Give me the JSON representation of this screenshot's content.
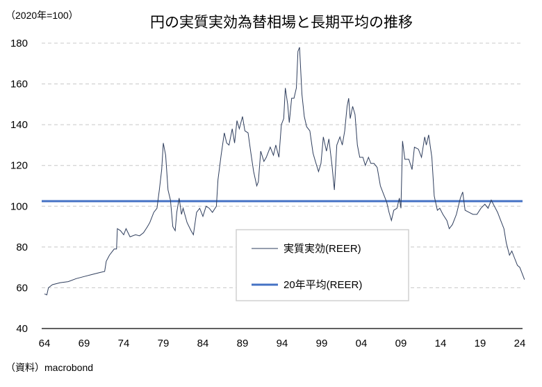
{
  "chart_data": {
    "type": "line",
    "title": "円の実質実効為替相場と長期平均の推移",
    "unit_label": "（2020年=100）",
    "source": "（資料）macrobond",
    "xlabel": "",
    "ylabel": "",
    "ylim": [
      40,
      180
    ],
    "yticks": [
      40,
      60,
      80,
      100,
      120,
      140,
      160,
      180
    ],
    "xlim": [
      1964,
      2024.6
    ],
    "xticks": [
      {
        "value": 1964,
        "label": "64"
      },
      {
        "value": 1969,
        "label": "69"
      },
      {
        "value": 1974,
        "label": "74"
      },
      {
        "value": 1979,
        "label": "79"
      },
      {
        "value": 1984,
        "label": "84"
      },
      {
        "value": 1989,
        "label": "89"
      },
      {
        "value": 1994,
        "label": "94"
      },
      {
        "value": 1999,
        "label": "99"
      },
      {
        "value": 2004,
        "label": "04"
      },
      {
        "value": 2009,
        "label": "09"
      },
      {
        "value": 2014,
        "label": "14"
      },
      {
        "value": 2019,
        "label": "19"
      },
      {
        "value": 2024,
        "label": "24"
      }
    ],
    "grid": true,
    "legend_position": "bottom-center",
    "series": [
      {
        "name": "実質実効(REER)",
        "color": "#2E3D5C",
        "x": [
          1964.0,
          1964.3,
          1964.5,
          1965,
          1966,
          1967,
          1968,
          1969,
          1970,
          1971,
          1971.6,
          1971.8,
          1972.2,
          1972.8,
          1973.1,
          1973.2,
          1973.6,
          1974,
          1974.3,
          1974.8,
          1975.5,
          1976,
          1976.5,
          1977,
          1977.3,
          1977.8,
          1978.2,
          1978.5,
          1978.8,
          1979.0,
          1979.3,
          1979.6,
          1979.9,
          1980.2,
          1980.5,
          1980.7,
          1981,
          1981.3,
          1981.5,
          1982,
          1982.5,
          1982.8,
          1983.2,
          1983.6,
          1984,
          1984.4,
          1984.8,
          1985.2,
          1985.7,
          1985.9,
          1986.3,
          1986.7,
          1987,
          1987.3,
          1987.7,
          1988,
          1988.3,
          1988.6,
          1989,
          1989.3,
          1989.7,
          1990.1,
          1990.4,
          1990.8,
          1991,
          1991.3,
          1991.7,
          1992,
          1992.5,
          1992.9,
          1993.2,
          1993.6,
          1993.9,
          1994.2,
          1994.4,
          1994.7,
          1994.9,
          1995.2,
          1995.5,
          1995.8,
          1996.0,
          1996.2,
          1996.5,
          1996.8,
          1997.1,
          1997.5,
          1997.9,
          1998.2,
          1998.6,
          1998.9,
          1999.2,
          1999.6,
          1999.9,
          2000.3,
          2000.6,
          2000.9,
          2001.3,
          2001.6,
          2001.9,
          2002.2,
          2002.4,
          2002.6,
          2002.9,
          2003.2,
          2003.5,
          2003.8,
          2004.2,
          2004.5,
          2004.9,
          2005.2,
          2005.6,
          2006.0,
          2006.4,
          2006.8,
          2007.2,
          2007.5,
          2007.8,
          2008.1,
          2008.5,
          2008.8,
          2009.0,
          2009.2,
          2009.5,
          2010,
          2010.4,
          2010.7,
          2011.2,
          2011.6,
          2012.0,
          2012.2,
          2012.5,
          2012.9,
          2013.2,
          2013.6,
          2013.9,
          2014.3,
          2014.8,
          2015.1,
          2015.5,
          2016.0,
          2016.5,
          2016.8,
          2017.1,
          2017.6,
          2018.1,
          2018.6,
          2019.1,
          2019.6,
          2020.0,
          2020.4,
          2020.8,
          2021.2,
          2021.6,
          2022.0,
          2022.3,
          2022.7,
          2023.0,
          2023.3,
          2023.7,
          2024.0,
          2024.4,
          2024.6
        ],
        "values": [
          57,
          56.5,
          60,
          61.5,
          62.5,
          63,
          64.5,
          65.5,
          66.5,
          67.5,
          68,
          73,
          76,
          79,
          79,
          89,
          88,
          86,
          89,
          85,
          86,
          85.5,
          87,
          90,
          92,
          97,
          99,
          108,
          118,
          131,
          125,
          108,
          103,
          90,
          88,
          97,
          104,
          96,
          99,
          92,
          88,
          86,
          97,
          99,
          95,
          100,
          99,
          97,
          100,
          113,
          125,
          136,
          131,
          130,
          138,
          131,
          142,
          138,
          144,
          137,
          136,
          125,
          117,
          110,
          112,
          127,
          122,
          124,
          129,
          125,
          130,
          124,
          140,
          143,
          158,
          150,
          141,
          153,
          153,
          158,
          176,
          178,
          155,
          144,
          139,
          137,
          126,
          122,
          117,
          121,
          134,
          127,
          133,
          120,
          108,
          130,
          134,
          130,
          137,
          149,
          153,
          143,
          149,
          145,
          130,
          124,
          124,
          120,
          124,
          121,
          121,
          119,
          110,
          106,
          102,
          97,
          93,
          98,
          99,
          104,
          99,
          132,
          123,
          123,
          118,
          129,
          128,
          124,
          134,
          130,
          135,
          124,
          105,
          98,
          99,
          96,
          93,
          89,
          91,
          96,
          104,
          107,
          98,
          97,
          96,
          96,
          99,
          101,
          99,
          103,
          100,
          97,
          93,
          89,
          82,
          76,
          78,
          75,
          71,
          70,
          66,
          64
        ]
      },
      {
        "name": "20年平均(REER)",
        "color": "#4472C4",
        "constant_value": 102.5
      }
    ]
  }
}
